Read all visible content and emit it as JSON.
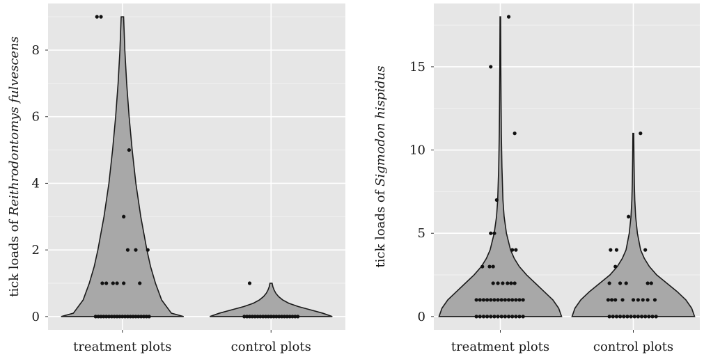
{
  "chart_data": [
    {
      "type": "violin",
      "title": "",
      "xlabel": "",
      "ylabel_prefix": "tick loads of ",
      "ylabel_species": "Reithrodontomys fulvescens",
      "categories": [
        "treatment plots",
        "control plots"
      ],
      "ylim": [
        -0.4,
        9.4
      ],
      "yticks": [
        0,
        2,
        4,
        6,
        8
      ],
      "ytick_labels": [
        "0",
        "2",
        "4",
        "6",
        "8"
      ],
      "grid": true,
      "violin_fill": "#a8a8a8",
      "series": [
        {
          "category": "treatment plots",
          "max": 9,
          "points": [
            {
              "y": 9,
              "dx": -0.19
            },
            {
              "y": 9,
              "dx": -0.16
            },
            {
              "y": 5,
              "dx": 0.05
            },
            {
              "y": 3,
              "dx": 0.01
            },
            {
              "y": 2,
              "dx": 0.04
            },
            {
              "y": 2,
              "dx": 0.1
            },
            {
              "y": 2,
              "dx": 0.19
            },
            {
              "y": 1,
              "dx": -0.15
            },
            {
              "y": 1,
              "dx": -0.12
            },
            {
              "y": 1,
              "dx": -0.07
            },
            {
              "y": 1,
              "dx": -0.04
            },
            {
              "y": 1,
              "dx": 0.01
            },
            {
              "y": 1,
              "dx": 0.13
            },
            {
              "y": 0,
              "dx": -0.2
            },
            {
              "y": 0,
              "dx": -0.18
            },
            {
              "y": 0,
              "dx": -0.16
            },
            {
              "y": 0,
              "dx": -0.14
            },
            {
              "y": 0,
              "dx": -0.12
            },
            {
              "y": 0,
              "dx": -0.1
            },
            {
              "y": 0,
              "dx": -0.08
            },
            {
              "y": 0,
              "dx": -0.06
            },
            {
              "y": 0,
              "dx": -0.04
            },
            {
              "y": 0,
              "dx": -0.02
            },
            {
              "y": 0,
              "dx": 0.0
            },
            {
              "y": 0,
              "dx": 0.02
            },
            {
              "y": 0,
              "dx": 0.04
            },
            {
              "y": 0,
              "dx": 0.06
            },
            {
              "y": 0,
              "dx": 0.08
            },
            {
              "y": 0,
              "dx": 0.1
            },
            {
              "y": 0,
              "dx": 0.12
            },
            {
              "y": 0,
              "dx": 0.14
            },
            {
              "y": 0,
              "dx": 0.16
            },
            {
              "y": 0,
              "dx": 0.18
            },
            {
              "y": 0,
              "dx": 0.2
            }
          ],
          "density": [
            [
              0,
              0.05
            ],
            [
              0.1,
              0.04
            ],
            [
              0.5,
              0.032
            ],
            [
              1,
              0.027
            ],
            [
              1.5,
              0.023
            ],
            [
              2,
              0.02
            ],
            [
              3,
              0.015
            ],
            [
              4,
              0.011
            ],
            [
              5,
              0.008
            ],
            [
              6,
              0.0055
            ],
            [
              7,
              0.0035
            ],
            [
              8,
              0.002
            ],
            [
              9,
              0.001
            ]
          ]
        },
        {
          "category": "control plots",
          "max": 1,
          "points": [
            {
              "y": 1,
              "dx": -0.16
            },
            {
              "y": 0,
              "dx": -0.2
            },
            {
              "y": 0,
              "dx": -0.18
            },
            {
              "y": 0,
              "dx": -0.16
            },
            {
              "y": 0,
              "dx": -0.14
            },
            {
              "y": 0,
              "dx": -0.12
            },
            {
              "y": 0,
              "dx": -0.1
            },
            {
              "y": 0,
              "dx": -0.08
            },
            {
              "y": 0,
              "dx": -0.06
            },
            {
              "y": 0,
              "dx": -0.04
            },
            {
              "y": 0,
              "dx": -0.02
            },
            {
              "y": 0,
              "dx": 0.0
            },
            {
              "y": 0,
              "dx": 0.02
            },
            {
              "y": 0,
              "dx": 0.04
            },
            {
              "y": 0,
              "dx": 0.06
            },
            {
              "y": 0,
              "dx": 0.08
            },
            {
              "y": 0,
              "dx": 0.1
            },
            {
              "y": 0,
              "dx": 0.12
            },
            {
              "y": 0,
              "dx": 0.14
            },
            {
              "y": 0,
              "dx": 0.16
            },
            {
              "y": 0,
              "dx": 0.18
            },
            {
              "y": 0,
              "dx": 0.2
            }
          ],
          "density": [
            [
              0,
              0.45
            ],
            [
              0.1,
              0.38
            ],
            [
              0.2,
              0.29
            ],
            [
              0.3,
              0.2
            ],
            [
              0.4,
              0.13
            ],
            [
              0.5,
              0.085
            ],
            [
              0.6,
              0.055
            ],
            [
              0.7,
              0.035
            ],
            [
              0.8,
              0.022
            ],
            [
              0.9,
              0.013
            ],
            [
              1,
              0.008
            ]
          ]
        }
      ]
    },
    {
      "type": "violin",
      "title": "",
      "xlabel": "",
      "ylabel_prefix": "tick loads of ",
      "ylabel_species": "Sigmodon hispidus",
      "categories": [
        "treatment plots",
        "control plots"
      ],
      "ylim": [
        -0.8,
        18.8
      ],
      "yticks": [
        0,
        5,
        10,
        15
      ],
      "ytick_labels": [
        "0",
        "5",
        "10",
        "15"
      ],
      "grid": true,
      "violin_fill": "#a8a8a8",
      "series": [
        {
          "category": "treatment plots",
          "max": 18,
          "points": [
            {
              "y": 18,
              "dx": 0.07
            },
            {
              "y": 15,
              "dx": -0.08
            },
            {
              "y": 11,
              "dx": 0.12
            },
            {
              "y": 7,
              "dx": -0.03
            },
            {
              "y": 5,
              "dx": -0.08
            },
            {
              "y": 5,
              "dx": -0.05
            },
            {
              "y": 4,
              "dx": 0.1
            },
            {
              "y": 4,
              "dx": 0.13
            },
            {
              "y": 3,
              "dx": -0.15
            },
            {
              "y": 3,
              "dx": -0.09
            },
            {
              "y": 3,
              "dx": -0.06
            },
            {
              "y": 2,
              "dx": -0.06
            },
            {
              "y": 2,
              "dx": -0.02
            },
            {
              "y": 2,
              "dx": 0.02
            },
            {
              "y": 2,
              "dx": 0.06
            },
            {
              "y": 2,
              "dx": 0.09
            },
            {
              "y": 2,
              "dx": 0.12
            },
            {
              "y": 1,
              "dx": -0.2
            },
            {
              "y": 1,
              "dx": -0.17
            },
            {
              "y": 1,
              "dx": -0.14
            },
            {
              "y": 1,
              "dx": -0.11
            },
            {
              "y": 1,
              "dx": -0.08
            },
            {
              "y": 1,
              "dx": -0.05
            },
            {
              "y": 1,
              "dx": -0.02
            },
            {
              "y": 1,
              "dx": 0.01
            },
            {
              "y": 1,
              "dx": 0.04
            },
            {
              "y": 1,
              "dx": 0.07
            },
            {
              "y": 1,
              "dx": 0.1
            },
            {
              "y": 1,
              "dx": 0.13
            },
            {
              "y": 1,
              "dx": 0.16
            },
            {
              "y": 1,
              "dx": 0.19
            },
            {
              "y": 0,
              "dx": -0.2
            },
            {
              "y": 0,
              "dx": -0.17
            },
            {
              "y": 0,
              "dx": -0.14
            },
            {
              "y": 0,
              "dx": -0.11
            },
            {
              "y": 0,
              "dx": -0.08
            },
            {
              "y": 0,
              "dx": -0.05
            },
            {
              "y": 0,
              "dx": -0.02
            },
            {
              "y": 0,
              "dx": 0.01
            },
            {
              "y": 0,
              "dx": 0.04
            },
            {
              "y": 0,
              "dx": 0.07
            },
            {
              "y": 0,
              "dx": 0.1
            },
            {
              "y": 0,
              "dx": 0.13
            },
            {
              "y": 0,
              "dx": 0.16
            },
            {
              "y": 0,
              "dx": 0.19
            }
          ],
          "density": [
            [
              0,
              0.42
            ],
            [
              0.5,
              0.4
            ],
            [
              1,
              0.36
            ],
            [
              1.5,
              0.3
            ],
            [
              2,
              0.24
            ],
            [
              2.5,
              0.18
            ],
            [
              3,
              0.13
            ],
            [
              3.5,
              0.095
            ],
            [
              4,
              0.07
            ],
            [
              5,
              0.042
            ],
            [
              6,
              0.026
            ],
            [
              7,
              0.018
            ],
            [
              9,
              0.011
            ],
            [
              11,
              0.007
            ],
            [
              13,
              0.005
            ],
            [
              15,
              0.0035
            ],
            [
              18,
              0.002
            ]
          ]
        },
        {
          "category": "control plots",
          "max": 11,
          "points": [
            {
              "y": 11,
              "dx": 0.06
            },
            {
              "y": 6,
              "dx": -0.04
            },
            {
              "y": 4,
              "dx": -0.19
            },
            {
              "y": 4,
              "dx": -0.14
            },
            {
              "y": 4,
              "dx": 0.1
            },
            {
              "y": 3,
              "dx": -0.15
            },
            {
              "y": 2,
              "dx": -0.2
            },
            {
              "y": 2,
              "dx": -0.11
            },
            {
              "y": 2,
              "dx": -0.06
            },
            {
              "y": 2,
              "dx": 0.12
            },
            {
              "y": 2,
              "dx": 0.15
            },
            {
              "y": 1,
              "dx": -0.21
            },
            {
              "y": 1,
              "dx": -0.18
            },
            {
              "y": 1,
              "dx": -0.15
            },
            {
              "y": 1,
              "dx": -0.09
            },
            {
              "y": 1,
              "dx": 0.0
            },
            {
              "y": 1,
              "dx": 0.04
            },
            {
              "y": 1,
              "dx": 0.08
            },
            {
              "y": 1,
              "dx": 0.12
            },
            {
              "y": 1,
              "dx": 0.18
            },
            {
              "y": 0,
              "dx": -0.2
            },
            {
              "y": 0,
              "dx": -0.17
            },
            {
              "y": 0,
              "dx": -0.14
            },
            {
              "y": 0,
              "dx": -0.11
            },
            {
              "y": 0,
              "dx": -0.08
            },
            {
              "y": 0,
              "dx": -0.05
            },
            {
              "y": 0,
              "dx": -0.02
            },
            {
              "y": 0,
              "dx": 0.01
            },
            {
              "y": 0,
              "dx": 0.04
            },
            {
              "y": 0,
              "dx": 0.07
            },
            {
              "y": 0,
              "dx": 0.1
            },
            {
              "y": 0,
              "dx": 0.13
            },
            {
              "y": 0,
              "dx": 0.16
            },
            {
              "y": 0,
              "dx": 0.19
            }
          ],
          "density": [
            [
              0,
              0.42
            ],
            [
              0.5,
              0.4
            ],
            [
              1,
              0.36
            ],
            [
              1.5,
              0.3
            ],
            [
              2,
              0.23
            ],
            [
              2.5,
              0.16
            ],
            [
              3,
              0.11
            ],
            [
              3.5,
              0.075
            ],
            [
              4,
              0.05
            ],
            [
              5,
              0.028
            ],
            [
              6,
              0.016
            ],
            [
              7,
              0.01
            ],
            [
              8,
              0.007
            ],
            [
              9.5,
              0.0045
            ],
            [
              11,
              0.003
            ]
          ]
        }
      ]
    }
  ]
}
